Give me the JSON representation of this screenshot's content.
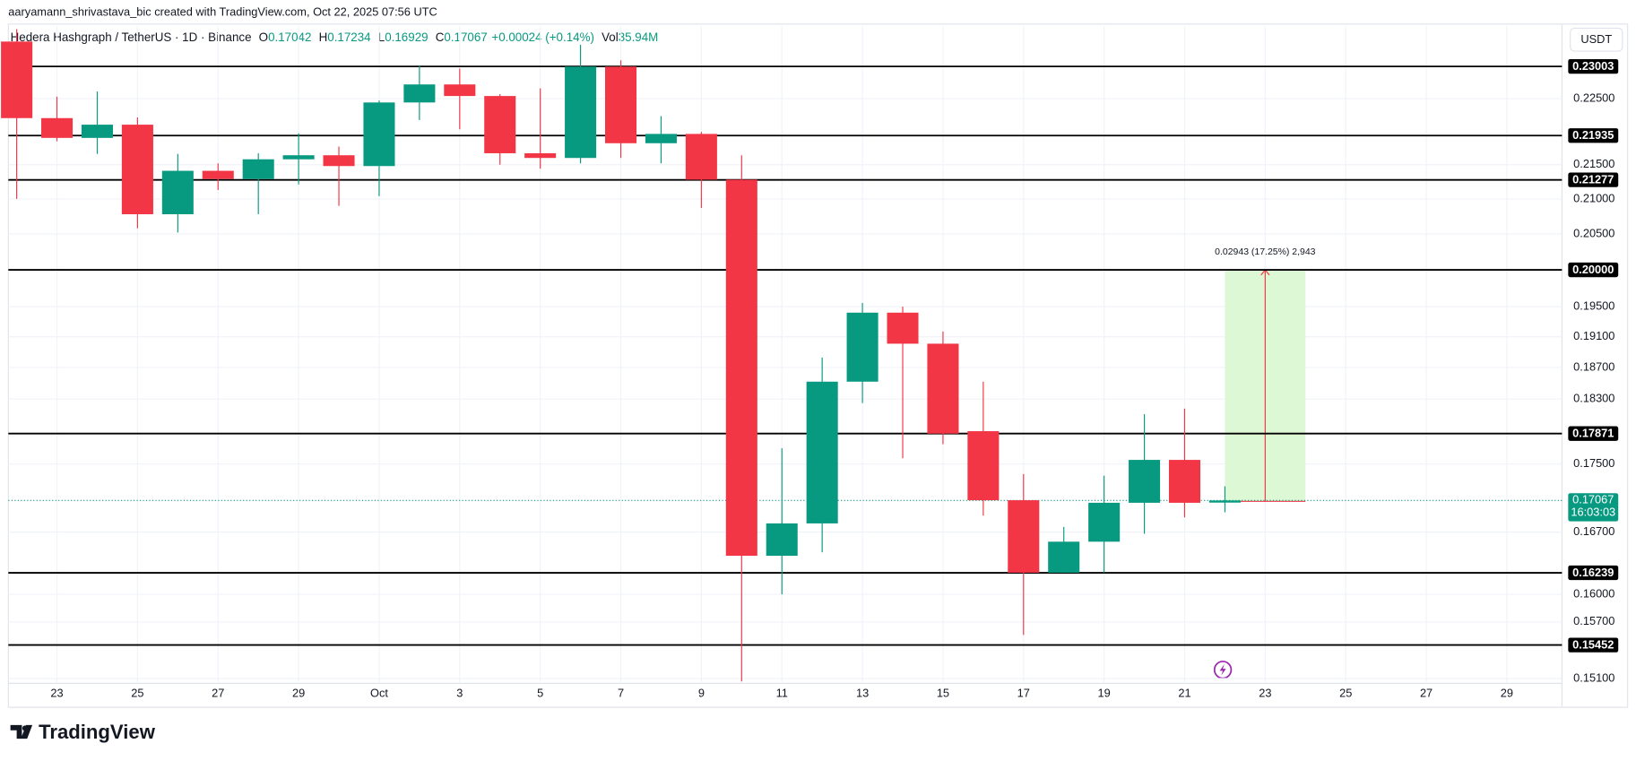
{
  "credit": "aaryamann_shrivastava_bic created with TradingView.com, Oct 22, 2025 07:56 UTC",
  "header": {
    "symbol": "Hedera Hashgraph / TetherUS · 1D · Binance",
    "ohlc": [
      {
        "key": "O",
        "value": "0.17042"
      },
      {
        "key": "H",
        "value": "0.17234"
      },
      {
        "key": "L",
        "value": "0.16929"
      },
      {
        "key": "C",
        "value": "0.17067"
      }
    ],
    "change": "+0.00024 (+0.14%)",
    "volume": {
      "key": "Vol",
      "value": "35.94M"
    }
  },
  "currency_button": "USDT",
  "footer": {
    "brand": "TradingView"
  },
  "chart_data": {
    "type": "candlestick",
    "log": true,
    "grid": true,
    "up_color": "#089981",
    "down_color": "#f23645",
    "categories": [
      null,
      "23",
      null,
      "25",
      null,
      "27",
      null,
      "29",
      null,
      "Oct",
      null,
      "3",
      null,
      "5",
      null,
      "7",
      null,
      "9",
      null,
      "11",
      null,
      "13",
      null,
      "15",
      null,
      "17",
      null,
      "19",
      null,
      "21",
      null,
      "23",
      null,
      "25",
      null,
      "27",
      null,
      "29",
      null
    ],
    "open": [
      0.234,
      0.222,
      0.219,
      0.221,
      0.2078,
      0.2141,
      0.2129,
      0.2158,
      0.2164,
      0.2148,
      0.2244,
      0.2272,
      0.2254,
      0.2167,
      0.216,
      0.23,
      0.2182,
      0.2196,
      0.2128,
      0.1643,
      0.168,
      0.1852,
      0.1942,
      0.1901,
      0.179,
      0.1707,
      0.1624,
      0.1659,
      0.1704,
      0.1755,
      0.17042,
      null,
      null,
      null,
      null,
      null,
      null,
      null,
      null
    ],
    "high": [
      0.236,
      0.2253,
      0.2261,
      0.2221,
      0.2166,
      0.2152,
      0.2167,
      0.2197,
      0.2177,
      0.2247,
      0.2302,
      0.2297,
      0.2257,
      0.2266,
      0.2335,
      0.231,
      0.2223,
      0.2199,
      0.2164,
      0.1769,
      0.1883,
      0.1955,
      0.195,
      0.1917,
      0.1852,
      0.1738,
      0.1676,
      0.1736,
      0.1811,
      0.1818,
      0.17234,
      null,
      null,
      null,
      null,
      null,
      null,
      null,
      null
    ],
    "low": [
      0.21,
      0.2185,
      0.2166,
      0.2058,
      0.2052,
      0.2113,
      0.2078,
      0.2121,
      0.209,
      0.2104,
      0.2217,
      0.2203,
      0.215,
      0.2144,
      0.2152,
      0.216,
      0.2152,
      0.2087,
      0.1507,
      0.16,
      0.1647,
      0.1825,
      0.1757,
      0.1774,
      0.1689,
      0.1556,
      0.1624,
      0.1624,
      0.1668,
      0.1687,
      0.16929,
      null,
      null,
      null,
      null,
      null,
      null,
      null,
      null
    ],
    "close": [
      0.222,
      0.219,
      0.221,
      0.2078,
      0.2141,
      0.2129,
      0.2158,
      0.2164,
      0.2148,
      0.2244,
      0.2272,
      0.2254,
      0.2167,
      0.216,
      0.23,
      0.2182,
      0.2196,
      0.2128,
      0.1643,
      0.168,
      0.1852,
      0.1942,
      0.1901,
      0.1787,
      0.1707,
      0.1624,
      0.1659,
      0.1704,
      0.1755,
      0.1704,
      0.17067,
      null,
      null,
      null,
      null,
      null,
      null,
      null,
      null
    ],
    "ylim": [
      0.1505,
      0.2365
    ],
    "yticks": [
      {
        "value": 0.225,
        "label": "0.22500"
      },
      {
        "value": 0.215,
        "label": "0.21500"
      },
      {
        "value": 0.21,
        "label": "0.21000"
      },
      {
        "value": 0.205,
        "label": "0.20500"
      },
      {
        "value": 0.195,
        "label": "0.19500"
      },
      {
        "value": 0.191,
        "label": "0.19100"
      },
      {
        "value": 0.187,
        "label": "0.18700"
      },
      {
        "value": 0.183,
        "label": "0.18300"
      },
      {
        "value": 0.175,
        "label": "0.17500"
      },
      {
        "value": 0.167,
        "label": "0.16700"
      },
      {
        "value": 0.16,
        "label": "0.16000"
      },
      {
        "value": 0.157,
        "label": "0.15700"
      },
      {
        "value": 0.151,
        "label": "0.15100"
      }
    ],
    "levels": [
      {
        "value": 0.23003,
        "label": "0.23003"
      },
      {
        "value": 0.21935,
        "label": "0.21935"
      },
      {
        "value": 0.21277,
        "label": "0.21277"
      },
      {
        "value": 0.2,
        "label": "0.20000"
      },
      {
        "value": 0.17871,
        "label": "0.17871"
      },
      {
        "value": 0.16239,
        "label": "0.16239"
      },
      {
        "value": 0.15452,
        "label": "0.15452"
      }
    ],
    "level_color": "#000000",
    "last_price": {
      "value": 0.17067,
      "label": "0.17067",
      "countdown": "16:03:03"
    },
    "measure": {
      "start": 0.17057,
      "end": 0.2,
      "label": "0.02943 (17.25%) 2,943",
      "color": "#f23645",
      "fill": "#dcf8d4"
    }
  }
}
